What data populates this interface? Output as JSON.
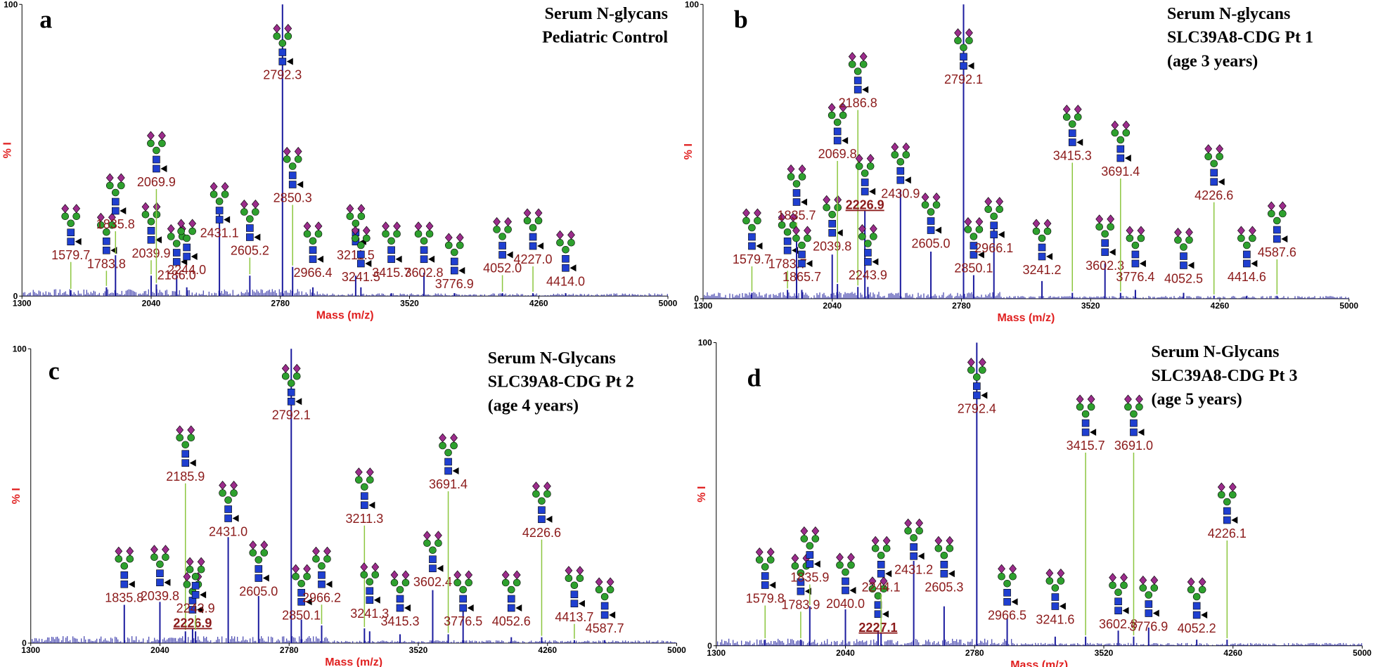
{
  "chart_data": [
    {
      "type": "spectrum",
      "panel_label": "a",
      "title": [
        "Serum N-glycans",
        "Pediatric Control"
      ],
      "xlabel": "Mass (m/z)",
      "ylabel": "% I",
      "color": "#1b1b9e",
      "label_color": "#8b1a1a",
      "xlim": [
        1300,
        5000
      ],
      "xticks": [
        1300,
        2040,
        2780,
        3520,
        4260,
        5000
      ],
      "ylim": [
        0,
        100
      ],
      "yticks": [
        0,
        100
      ],
      "x": [
        1579.7,
        1783.8,
        1835.8,
        2039.9,
        2069.9,
        2186.0,
        2244.0,
        2431.1,
        2605.2,
        2792.3,
        2850.3,
        2966.4,
        3211.5,
        3241.5,
        3415.7,
        3602.8,
        3776.9,
        4052.0,
        4227.0,
        4414.0
      ],
      "peak_labels": [
        "1579.7",
        "1783.8",
        "1835.8",
        "2039.9",
        "2069.9",
        "2186.0",
        "2244.0",
        "2431.1",
        "2605.2",
        "2792.3",
        "2850.3",
        "2966.4",
        "3211.5",
        "3241.5",
        "3415.7",
        "3602.8",
        "3776.9",
        "4052.0",
        "4227.0",
        "4414.0"
      ],
      "values": [
        2,
        3,
        14,
        7,
        4,
        7,
        3,
        28,
        7,
        100,
        10,
        3,
        7,
        3,
        1,
        8,
        1,
        1,
        1,
        1
      ]
    },
    {
      "type": "spectrum",
      "panel_label": "b",
      "title": [
        "Serum N-glycans",
        "SLC39A8-CDG  Pt 1",
        "(age 3 years)"
      ],
      "xlabel": "Mass (m/z)",
      "ylabel": "% I",
      "color": "#1b1b9e",
      "label_color": "#8b1a1a",
      "xlim": [
        1300,
        5000
      ],
      "xticks": [
        1300,
        2040,
        2780,
        3520,
        4260,
        5000
      ],
      "ylim": [
        0,
        100
      ],
      "yticks": [
        0,
        100
      ],
      "x": [
        1579.7,
        1783.7,
        1835.7,
        1865.7,
        2039.8,
        2069.8,
        2186.8,
        2226.9,
        2243.9,
        2430.9,
        2605.0,
        2792.1,
        2850.1,
        2966.1,
        3241.2,
        3415.3,
        3602.3,
        3691.4,
        3776.4,
        4052.5,
        4226.6,
        4414.6,
        4587.6
      ],
      "peak_labels": [
        "1579.7",
        "1783.7",
        "1835.7",
        "1865.7",
        "2039.8",
        "2069.8",
        "2186.8",
        "2226.9",
        "2243.9",
        "2430.9",
        "2605.0",
        "2792.1",
        "2850.1",
        "2966.1",
        "3241.2",
        "3415.3",
        "3602.3",
        "3691.4",
        "3776.4",
        "4052.5",
        "4226.6",
        "4414.6",
        "4587.6"
      ],
      "values": [
        2,
        3,
        21,
        3,
        15,
        5,
        4,
        30,
        4,
        37,
        16,
        100,
        8,
        24,
        6,
        2,
        12,
        2,
        3,
        2,
        1,
        1,
        1
      ],
      "highlight": [
        7
      ]
    },
    {
      "type": "spectrum",
      "panel_label": "c",
      "title": [
        "Serum N-Glycans",
        "SLC39A8-CDG Pt 2",
        "(age 4 years)"
      ],
      "xlabel": "Mass (m/z)",
      "ylabel": "% I",
      "color": "#1b1b9e",
      "label_color": "#8b1a1a",
      "xlim": [
        1300,
        5000
      ],
      "xticks": [
        1300,
        2040,
        2780,
        3520,
        4260,
        5000
      ],
      "ylim": [
        0,
        100
      ],
      "yticks": [
        0,
        100
      ],
      "x": [
        1835.8,
        2039.8,
        2185.9,
        2226.9,
        2243.9,
        2431.0,
        2605.0,
        2792.1,
        2850.1,
        2966.2,
        3211.3,
        3241.3,
        3415.3,
        3602.4,
        3691.4,
        3776.5,
        4052.6,
        4226.6,
        4413.7,
        4587.7
      ],
      "peak_labels": [
        "1835.8",
        "2039.8",
        "2185.9",
        "2226.9",
        "2243.9",
        "2431.0",
        "2605.0",
        "2792.1",
        "2850.1",
        "2966.2",
        "3211.3",
        "3241.3",
        "3415.3",
        "3602.4",
        "3691.4",
        "3776.5",
        "4052.6",
        "4226.6",
        "4413.7",
        "4587.7"
      ],
      "values": [
        13,
        14,
        4,
        5,
        4,
        36,
        16,
        100,
        8,
        6,
        5,
        4,
        3,
        18,
        3,
        11,
        2,
        2,
        1,
        1
      ],
      "highlight": [
        3
      ]
    },
    {
      "type": "spectrum",
      "panel_label": "d",
      "title": [
        "Serum N-Glycans",
        "SLC39A8-CDG Pt 3",
        "(age 5 years)"
      ],
      "xlabel": "Mass (m/z)",
      "ylabel": "% I",
      "color": "#1b1b9e",
      "label_color": "#8b1a1a",
      "xlim": [
        1300,
        5000
      ],
      "xticks": [
        1300,
        2040,
        2780,
        3520,
        4260,
        5000
      ],
      "ylim": [
        0,
        100
      ],
      "yticks": [
        0,
        100
      ],
      "x": [
        1579.8,
        1783.9,
        1835.9,
        2040.0,
        2227.1,
        2244.1,
        2431.2,
        2605.3,
        2792.4,
        2966.5,
        3241.6,
        3415.7,
        3602.8,
        3691.0,
        3776.9,
        4052.2,
        4226.1
      ],
      "peak_labels": [
        "1579.8",
        "1783.9",
        "1835.9",
        "2040.0",
        "2227.1",
        "2244.1",
        "2431.2",
        "2605.3",
        "2792.4",
        "2966.5",
        "3241.6",
        "3415.7",
        "3602.8",
        "3691.0",
        "3776.9",
        "4052.2",
        "4226.1"
      ],
      "values": [
        2,
        2,
        13,
        12,
        5,
        4,
        28,
        13,
        100,
        9,
        3,
        3,
        5,
        3,
        6,
        2,
        2
      ],
      "highlight": [
        4
      ]
    }
  ]
}
